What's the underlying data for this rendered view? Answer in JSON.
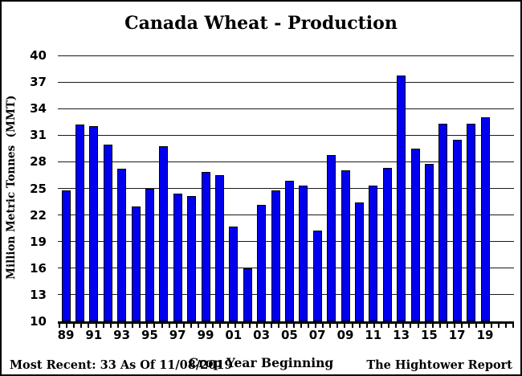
{
  "window": {
    "title": "Canada Wheat - Production"
  },
  "chart_data": {
    "type": "bar",
    "title": "Canada Wheat - Production",
    "xlabel": "Crop Year Beginning",
    "ylabel": "Million Metric Tonnes  (MMT)",
    "ylim": [
      10,
      40
    ],
    "yticks": [
      10,
      13,
      16,
      19,
      22,
      25,
      28,
      31,
      34,
      37,
      40
    ],
    "categories": [
      "89",
      "90",
      "91",
      "92",
      "93",
      "94",
      "95",
      "96",
      "97",
      "98",
      "99",
      "00",
      "01",
      "02",
      "03",
      "04",
      "05",
      "06",
      "07",
      "08",
      "09",
      "10",
      "11",
      "12",
      "13",
      "14",
      "15",
      "16",
      "17",
      "18",
      "19"
    ],
    "xtick_labels": [
      "89",
      "91",
      "93",
      "95",
      "97",
      "99",
      "01",
      "03",
      "05",
      "07",
      "09",
      "11",
      "13",
      "15",
      "17",
      "19"
    ],
    "values": [
      24.8,
      32.2,
      32.0,
      29.9,
      27.2,
      23.0,
      25.0,
      29.8,
      24.4,
      24.1,
      26.9,
      26.5,
      20.7,
      16.0,
      23.1,
      24.8,
      25.9,
      25.3,
      20.2,
      28.8,
      27.0,
      23.4,
      25.3,
      27.3,
      37.7,
      29.5,
      27.8,
      32.3,
      30.5,
      32.3,
      33.0
    ],
    "bar_color": "#0000EE",
    "bar_border_color": "#000000",
    "grid": true,
    "legend_position": "none"
  },
  "footer": {
    "most_recent": "Most Recent: 33 As Of 11/08/2019",
    "source": "The Hightower Report"
  }
}
